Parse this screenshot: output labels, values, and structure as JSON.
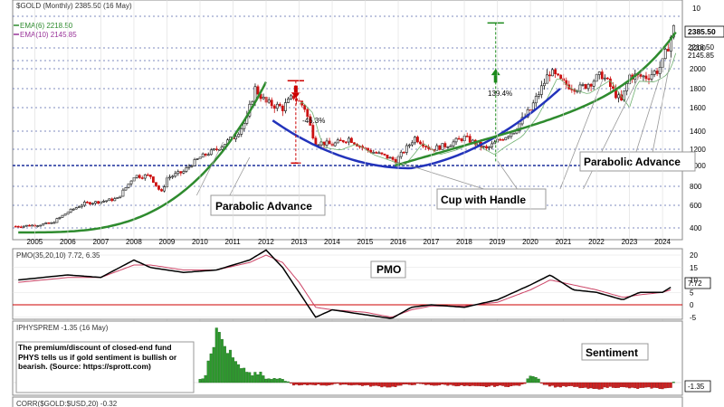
{
  "chart_data": {
    "type": "candlestick",
    "price": {
      "header": "$GOLD (Monthly) 2385.50 (16 May)",
      "ema6_label": "EMA(6) 2218.50",
      "ema10_label": "EMA(10) 2145.85",
      "last_value": "2385.50",
      "ema6_value": "2218.50",
      "ema10_value": "2145.85",
      "y_ticks": [
        400,
        600,
        800,
        1000,
        1200,
        1400,
        1600,
        1800,
        2000,
        2200
      ],
      "y_top_label": "10",
      "x_years": [
        "2005",
        "2006",
        "2007",
        "2008",
        "2009",
        "2010",
        "2011",
        "2012",
        "2013",
        "2014",
        "2015",
        "2016",
        "2017",
        "2018",
        "2019",
        "2020",
        "2021",
        "2022",
        "2023",
        "2024"
      ],
      "closes": [
        [
          2004.5,
          415
        ],
        [
          2005.0,
          425
        ],
        [
          2005.5,
          440
        ],
        [
          2006.0,
          540
        ],
        [
          2006.5,
          620
        ],
        [
          2007.0,
          640
        ],
        [
          2007.5,
          670
        ],
        [
          2008.0,
          900
        ],
        [
          2008.5,
          900
        ],
        [
          2008.83,
          730
        ],
        [
          2009.0,
          880
        ],
        [
          2009.5,
          940
        ],
        [
          2010.0,
          1100
        ],
        [
          2010.5,
          1200
        ],
        [
          2011.0,
          1330
        ],
        [
          2011.42,
          1500
        ],
        [
          2011.67,
          1800
        ],
        [
          2012.0,
          1650
        ],
        [
          2012.5,
          1600
        ],
        [
          2012.83,
          1720
        ],
        [
          2013.17,
          1600
        ],
        [
          2013.5,
          1280
        ],
        [
          2014.0,
          1250
        ],
        [
          2014.5,
          1320
        ],
        [
          2015.0,
          1200
        ],
        [
          2015.5,
          1130
        ],
        [
          2015.92,
          1060
        ],
        [
          2016.5,
          1330
        ],
        [
          2017.0,
          1200
        ],
        [
          2017.5,
          1250
        ],
        [
          2018.0,
          1330
        ],
        [
          2018.67,
          1200
        ],
        [
          2019.0,
          1290
        ],
        [
          2019.5,
          1400
        ],
        [
          2020.0,
          1580
        ],
        [
          2020.58,
          1970
        ],
        [
          2021.0,
          1850
        ],
        [
          2021.5,
          1800
        ],
        [
          2022.17,
          1940
        ],
        [
          2022.75,
          1660
        ],
        [
          2023.0,
          1930
        ],
        [
          2023.5,
          1920
        ],
        [
          2023.83,
          1980
        ],
        [
          2024.0,
          2050
        ],
        [
          2024.33,
          2385.5
        ]
      ],
      "annotations": {
        "parabolic_1": "Parabolic Advance",
        "cup": "Cup with Handle",
        "parabolic_2": "Parabolic Advance",
        "decline_pct": "-46.3%",
        "rise_pct": "139.4%"
      }
    },
    "pmo": {
      "header": "PMO(35,20,10) 7.72, 6.35",
      "label": "PMO",
      "last_value": "7.72",
      "y_ticks": [
        20,
        15,
        10,
        5,
        0,
        -5
      ],
      "pmo_line": [
        [
          2004.5,
          10
        ],
        [
          2006.0,
          12
        ],
        [
          2007.0,
          11
        ],
        [
          2008.0,
          18
        ],
        [
          2008.5,
          15
        ],
        [
          2009.5,
          13
        ],
        [
          2010.5,
          14
        ],
        [
          2011.5,
          18
        ],
        [
          2012.0,
          22
        ],
        [
          2012.5,
          15
        ],
        [
          2013.0,
          5
        ],
        [
          2013.5,
          -5
        ],
        [
          2014.0,
          -2
        ],
        [
          2015.0,
          -4
        ],
        [
          2015.8,
          -5.5
        ],
        [
          2016.4,
          -1
        ],
        [
          2017.0,
          0
        ],
        [
          2018.0,
          -1
        ],
        [
          2019.0,
          2
        ],
        [
          2020.0,
          8
        ],
        [
          2020.6,
          12
        ],
        [
          2021.3,
          6
        ],
        [
          2022.0,
          5
        ],
        [
          2022.8,
          2
        ],
        [
          2023.3,
          5
        ],
        [
          2024.0,
          5
        ],
        [
          2024.33,
          7.72
        ]
      ],
      "signal_line": [
        [
          2004.5,
          9
        ],
        [
          2006.0,
          11
        ],
        [
          2007.0,
          11
        ],
        [
          2008.0,
          16
        ],
        [
          2008.5,
          16
        ],
        [
          2009.5,
          14
        ],
        [
          2010.5,
          14
        ],
        [
          2011.5,
          17
        ],
        [
          2012.0,
          20
        ],
        [
          2012.5,
          17
        ],
        [
          2013.0,
          9
        ],
        [
          2013.5,
          -1
        ],
        [
          2014.0,
          -2
        ],
        [
          2015.0,
          -3
        ],
        [
          2015.8,
          -5
        ],
        [
          2016.4,
          -2
        ],
        [
          2017.0,
          -0.5
        ],
        [
          2018.0,
          -0.5
        ],
        [
          2019.0,
          1
        ],
        [
          2020.0,
          6
        ],
        [
          2020.6,
          10
        ],
        [
          2021.3,
          8
        ],
        [
          2022.0,
          6
        ],
        [
          2022.8,
          3
        ],
        [
          2023.3,
          4
        ],
        [
          2024.0,
          5
        ],
        [
          2024.33,
          6.35
        ]
      ]
    },
    "premium": {
      "header": "IPHYSPREM -1.35 (16 May)",
      "label": "Sentiment",
      "note": "The premium/discount of closed-end fund PHYS tells us if gold sentiment is bullish or bearish. (Source: https://sprott.com)",
      "last_value": "-1.35",
      "bars": [
        [
          2010.0,
          1
        ],
        [
          2010.08,
          1
        ],
        [
          2010.17,
          2
        ],
        [
          2010.25,
          6
        ],
        [
          2010.33,
          8
        ],
        [
          2010.42,
          10
        ],
        [
          2010.5,
          15
        ],
        [
          2010.58,
          14
        ],
        [
          2010.67,
          12
        ],
        [
          2010.75,
          10
        ],
        [
          2010.83,
          8
        ],
        [
          2010.92,
          9
        ],
        [
          2011.0,
          7
        ],
        [
          2011.08,
          6
        ],
        [
          2011.17,
          5
        ],
        [
          2011.25,
          4
        ],
        [
          2011.33,
          4
        ],
        [
          2011.42,
          3
        ],
        [
          2011.5,
          3
        ],
        [
          2011.58,
          2
        ],
        [
          2011.67,
          3
        ],
        [
          2011.75,
          2
        ],
        [
          2011.83,
          3
        ],
        [
          2011.92,
          2
        ],
        [
          2012.0,
          1
        ],
        [
          2012.2,
          1
        ],
        [
          2012.4,
          1
        ],
        [
          2012.6,
          0.5
        ],
        [
          2012.8,
          -0.5
        ],
        [
          2013.0,
          -0.8
        ],
        [
          2013.4,
          -0.5
        ],
        [
          2013.8,
          -0.7
        ],
        [
          2014.2,
          -0.4
        ],
        [
          2014.6,
          -0.6
        ],
        [
          2015.0,
          -0.8
        ],
        [
          2015.4,
          -1
        ],
        [
          2015.8,
          -1.2
        ],
        [
          2016.2,
          -0.6
        ],
        [
          2016.6,
          -0.4
        ],
        [
          2017.0,
          -0.7
        ],
        [
          2017.4,
          -0.6
        ],
        [
          2017.8,
          -0.8
        ],
        [
          2018.2,
          -1
        ],
        [
          2018.6,
          -1.1
        ],
        [
          2019.0,
          -0.9
        ],
        [
          2019.4,
          -1
        ],
        [
          2019.8,
          -0.6
        ],
        [
          2020.0,
          2
        ],
        [
          2020.2,
          1.5
        ],
        [
          2020.4,
          -0.5
        ],
        [
          2020.8,
          -1.2
        ],
        [
          2021.2,
          -1
        ],
        [
          2021.6,
          -1.5
        ],
        [
          2022.0,
          -1.8
        ],
        [
          2022.4,
          -1.2
        ],
        [
          2022.8,
          -1.3
        ],
        [
          2023.2,
          -1.6
        ],
        [
          2023.6,
          -1.4
        ],
        [
          2024.0,
          -1.6
        ],
        [
          2024.33,
          -1.35
        ]
      ]
    },
    "corr": {
      "header": "CORR($GOLD:$USD,20) -0.32"
    }
  }
}
